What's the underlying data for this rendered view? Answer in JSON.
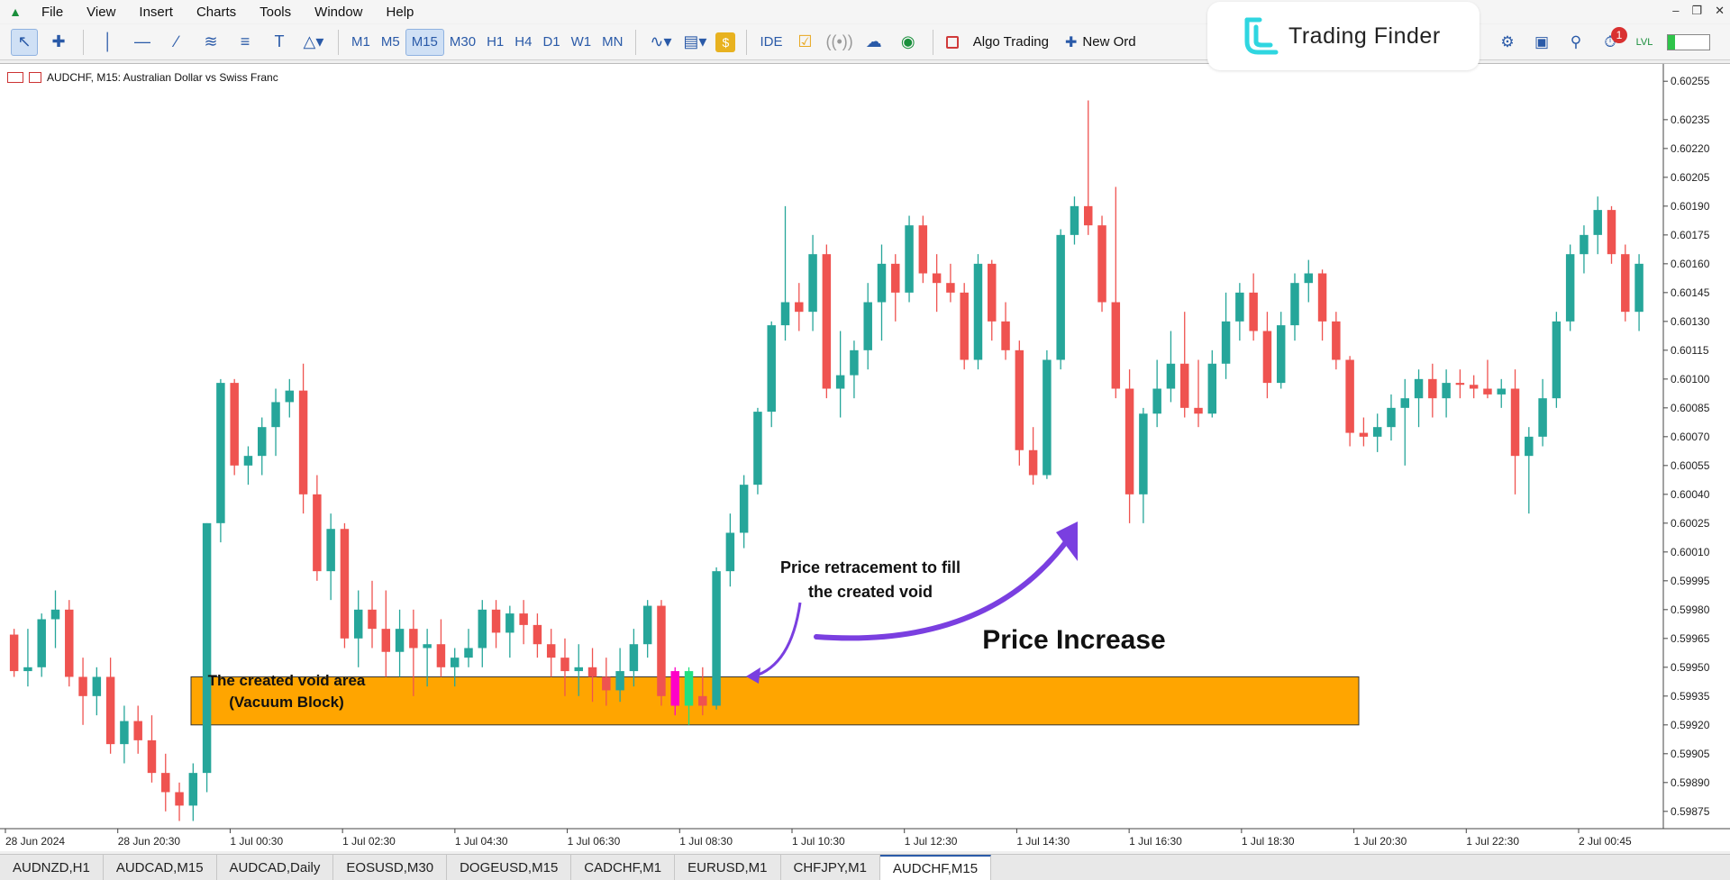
{
  "menu": [
    "File",
    "View",
    "Insert",
    "Charts",
    "Tools",
    "Window",
    "Help"
  ],
  "timeframes": [
    "M1",
    "M5",
    "M15",
    "M30",
    "H1",
    "H4",
    "D1",
    "W1",
    "MN"
  ],
  "active_timeframe": "M15",
  "toolbar_text": {
    "ide": "IDE",
    "algo": "Algo Trading",
    "new_order": "New Ord"
  },
  "logo": {
    "text": "Trading Finder"
  },
  "notifications_count": "1",
  "chart_header": "AUDCHF, M15:  Australian Dollar vs Swiss Franc",
  "tabs": [
    "AUDNZD,H1",
    "AUDCAD,M15",
    "AUDCAD,Daily",
    "EOSUSD,M30",
    "DOGEUSD,M15",
    "CADCHF,M1",
    "EURUSD,M1",
    "CHFJPY,M1",
    "AUDCHF,M15"
  ],
  "active_tab": "AUDCHF,M15",
  "colors": {
    "bull": "#26a69a",
    "bear": "#ef5350",
    "zone": "#ffa500",
    "arrow": "#7a3fe0"
  },
  "chart_data": {
    "type": "candlestick",
    "symbol": "AUDCHF",
    "timeframe": "M15",
    "y_ticks": [
      "0.60255",
      "0.60235",
      "0.60220",
      "0.60205",
      "0.60190",
      "0.60175",
      "0.60160",
      "0.60145",
      "0.60130",
      "0.60115",
      "0.60100",
      "0.60085",
      "0.60070",
      "0.60055",
      "0.60040",
      "0.60025",
      "0.60010",
      "0.59995",
      "0.59980",
      "0.59965",
      "0.59950",
      "0.59935",
      "0.59920",
      "0.59905",
      "0.59890",
      "0.59875"
    ],
    "ylim": [
      0.59866,
      0.60264
    ],
    "x_ticks": [
      "28 Jun 2024",
      "28 Jun 20:30",
      "1 Jul 00:30",
      "1 Jul 02:30",
      "1 Jul 04:30",
      "1 Jul 06:30",
      "1 Jul 08:30",
      "1 Jul 10:30",
      "1 Jul 12:30",
      "1 Jul 14:30",
      "1 Jul 16:30",
      "1 Jul 18:30",
      "1 Jul 20:30",
      "1 Jul 22:30",
      "2 Jul 00:45"
    ],
    "candles": [
      [
        0.59967,
        0.5997,
        0.59945,
        0.59948
      ],
      [
        0.59948,
        0.5997,
        0.5994,
        0.5995
      ],
      [
        0.5995,
        0.59978,
        0.59945,
        0.59975
      ],
      [
        0.59975,
        0.5999,
        0.5996,
        0.5998
      ],
      [
        0.5998,
        0.59985,
        0.5994,
        0.59945
      ],
      [
        0.59945,
        0.59955,
        0.5992,
        0.59935
      ],
      [
        0.59935,
        0.5995,
        0.59925,
        0.59945
      ],
      [
        0.59945,
        0.59955,
        0.59905,
        0.5991
      ],
      [
        0.5991,
        0.5993,
        0.599,
        0.59922
      ],
      [
        0.59922,
        0.5993,
        0.59905,
        0.59912
      ],
      [
        0.59912,
        0.59925,
        0.5989,
        0.59895
      ],
      [
        0.59895,
        0.59905,
        0.59875,
        0.59885
      ],
      [
        0.59885,
        0.5989,
        0.5987,
        0.59878
      ],
      [
        0.59878,
        0.599,
        0.5987,
        0.59895
      ],
      [
        0.59895,
        0.60025,
        0.59885,
        0.60025
      ],
      [
        0.60025,
        0.601,
        0.60015,
        0.60098
      ],
      [
        0.60098,
        0.601,
        0.6005,
        0.60055
      ],
      [
        0.60055,
        0.60065,
        0.60045,
        0.6006
      ],
      [
        0.6006,
        0.6008,
        0.6005,
        0.60075
      ],
      [
        0.60075,
        0.60095,
        0.6006,
        0.60088
      ],
      [
        0.60088,
        0.601,
        0.6008,
        0.60094
      ],
      [
        0.60094,
        0.60108,
        0.6003,
        0.6004
      ],
      [
        0.6004,
        0.6005,
        0.59995,
        0.6
      ],
      [
        0.6,
        0.6003,
        0.59985,
        0.60022
      ],
      [
        0.60022,
        0.60025,
        0.5996,
        0.59965
      ],
      [
        0.59965,
        0.5999,
        0.5995,
        0.5998
      ],
      [
        0.5998,
        0.59995,
        0.5996,
        0.5997
      ],
      [
        0.5997,
        0.5999,
        0.59945,
        0.59958
      ],
      [
        0.59958,
        0.5998,
        0.59945,
        0.5997
      ],
      [
        0.5997,
        0.5998,
        0.59935,
        0.5996
      ],
      [
        0.5996,
        0.5997,
        0.5994,
        0.59962
      ],
      [
        0.59962,
        0.59975,
        0.59945,
        0.5995
      ],
      [
        0.5995,
        0.5996,
        0.5994,
        0.59955
      ],
      [
        0.59955,
        0.5997,
        0.5995,
        0.5996
      ],
      [
        0.5996,
        0.59985,
        0.5995,
        0.5998
      ],
      [
        0.5998,
        0.59985,
        0.5996,
        0.59968
      ],
      [
        0.59968,
        0.59982,
        0.59955,
        0.59978
      ],
      [
        0.59978,
        0.59985,
        0.59962,
        0.59972
      ],
      [
        0.59972,
        0.59978,
        0.59955,
        0.59962
      ],
      [
        0.59962,
        0.5997,
        0.59945,
        0.59955
      ],
      [
        0.59955,
        0.59965,
        0.59935,
        0.59948
      ],
      [
        0.59948,
        0.59962,
        0.59935,
        0.5995
      ],
      [
        0.5995,
        0.5996,
        0.59932,
        0.59945
      ],
      [
        0.59945,
        0.59955,
        0.5993,
        0.59938
      ],
      [
        0.59938,
        0.5996,
        0.59932,
        0.59948
      ],
      [
        0.59948,
        0.5997,
        0.5994,
        0.59962
      ],
      [
        0.59962,
        0.59985,
        0.59955,
        0.59982
      ],
      [
        0.59982,
        0.59985,
        0.5993,
        0.59935
      ],
      [
        0.59935,
        0.5995,
        0.59925,
        0.5993
      ],
      [
        0.5993,
        0.60002,
        0.59928,
        0.6
      ],
      [
        0.6,
        0.6003,
        0.59992,
        0.6002
      ],
      [
        0.6002,
        0.6005,
        0.60012,
        0.60045
      ],
      [
        0.60045,
        0.60085,
        0.6004,
        0.60083
      ],
      [
        0.60083,
        0.6013,
        0.60075,
        0.60128
      ],
      [
        0.60128,
        0.6019,
        0.6012,
        0.6014
      ],
      [
        0.6014,
        0.6015,
        0.60125,
        0.60135
      ],
      [
        0.60135,
        0.60175,
        0.60125,
        0.60165
      ],
      [
        0.60165,
        0.6017,
        0.6009,
        0.60095
      ],
      [
        0.60095,
        0.60125,
        0.6008,
        0.60102
      ],
      [
        0.60102,
        0.6012,
        0.6009,
        0.60115
      ],
      [
        0.60115,
        0.6015,
        0.60105,
        0.6014
      ],
      [
        0.6014,
        0.6017,
        0.6012,
        0.6016
      ],
      [
        0.6016,
        0.60165,
        0.6013,
        0.60145
      ],
      [
        0.60145,
        0.60185,
        0.6014,
        0.6018
      ],
      [
        0.6018,
        0.60185,
        0.6015,
        0.60155
      ],
      [
        0.60155,
        0.60165,
        0.60135,
        0.6015
      ],
      [
        0.6015,
        0.6016,
        0.6014,
        0.60145
      ],
      [
        0.60145,
        0.6015,
        0.60105,
        0.6011
      ],
      [
        0.6011,
        0.60165,
        0.60105,
        0.6016
      ],
      [
        0.6016,
        0.60162,
        0.6012,
        0.6013
      ],
      [
        0.6013,
        0.6014,
        0.6011,
        0.60115
      ],
      [
        0.60115,
        0.6012,
        0.60055,
        0.60063
      ],
      [
        0.60063,
        0.60075,
        0.60045,
        0.6005
      ],
      [
        0.6005,
        0.60115,
        0.60048,
        0.6011
      ],
      [
        0.6011,
        0.60178,
        0.60105,
        0.60175
      ],
      [
        0.60175,
        0.60195,
        0.6017,
        0.6019
      ],
      [
        0.6019,
        0.60245,
        0.60175,
        0.6018
      ],
      [
        0.6018,
        0.60185,
        0.60135,
        0.6014
      ],
      [
        0.6014,
        0.602,
        0.6009,
        0.60095
      ],
      [
        0.60095,
        0.60105,
        0.60025,
        0.6004
      ],
      [
        0.6004,
        0.60085,
        0.60025,
        0.60082
      ],
      [
        0.60082,
        0.6011,
        0.60075,
        0.60095
      ],
      [
        0.60095,
        0.60125,
        0.60088,
        0.60108
      ],
      [
        0.60108,
        0.60135,
        0.6008,
        0.60085
      ],
      [
        0.60085,
        0.6011,
        0.60075,
        0.60082
      ],
      [
        0.60082,
        0.60115,
        0.6008,
        0.60108
      ],
      [
        0.60108,
        0.60145,
        0.601,
        0.6013
      ],
      [
        0.6013,
        0.6015,
        0.6012,
        0.60145
      ],
      [
        0.60145,
        0.60155,
        0.6012,
        0.60125
      ],
      [
        0.60125,
        0.60135,
        0.6009,
        0.60098
      ],
      [
        0.60098,
        0.60135,
        0.60095,
        0.60128
      ],
      [
        0.60128,
        0.60155,
        0.6012,
        0.6015
      ],
      [
        0.6015,
        0.60162,
        0.6014,
        0.60155
      ],
      [
        0.60155,
        0.60157,
        0.6012,
        0.6013
      ],
      [
        0.6013,
        0.60135,
        0.60105,
        0.6011
      ],
      [
        0.6011,
        0.60112,
        0.60065,
        0.60072
      ],
      [
        0.60072,
        0.6008,
        0.60065,
        0.6007
      ],
      [
        0.6007,
        0.60082,
        0.60062,
        0.60075
      ],
      [
        0.60075,
        0.60092,
        0.60068,
        0.60085
      ],
      [
        0.60085,
        0.601,
        0.60055,
        0.6009
      ],
      [
        0.6009,
        0.60105,
        0.60075,
        0.601
      ],
      [
        0.601,
        0.60108,
        0.6008,
        0.6009
      ],
      [
        0.6009,
        0.60105,
        0.6008,
        0.60098
      ],
      [
        0.60098,
        0.60105,
        0.6009,
        0.60097
      ],
      [
        0.60097,
        0.60102,
        0.6009,
        0.60095
      ],
      [
        0.60095,
        0.6011,
        0.6009,
        0.60092
      ],
      [
        0.60092,
        0.601,
        0.60085,
        0.60095
      ],
      [
        0.60095,
        0.60105,
        0.6004,
        0.6006
      ],
      [
        0.6006,
        0.60075,
        0.6003,
        0.6007
      ],
      [
        0.6007,
        0.601,
        0.60065,
        0.6009
      ],
      [
        0.6009,
        0.60135,
        0.60085,
        0.6013
      ],
      [
        0.6013,
        0.6017,
        0.60125,
        0.60165
      ],
      [
        0.60165,
        0.6018,
        0.60155,
        0.60175
      ],
      [
        0.60175,
        0.60195,
        0.60165,
        0.60188
      ],
      [
        0.60188,
        0.6019,
        0.6016,
        0.60165
      ],
      [
        0.60165,
        0.6017,
        0.6013,
        0.60135
      ],
      [
        0.60135,
        0.60165,
        0.60125,
        0.6016
      ]
    ],
    "vacuum_candles": [
      [
        0.59948,
        0.5995,
        0.59925,
        0.5993
      ],
      [
        0.5993,
        0.5995,
        0.5992,
        0.59948
      ]
    ],
    "zone": {
      "from_price": 0.59945,
      "to_price": 0.5992
    }
  },
  "annotations": {
    "zone_label_1": "The created void area",
    "zone_label_2": "(Vacuum Block)",
    "retrace_1": "Price retracement to fill",
    "retrace_2": "the created void",
    "increase": "Price Increase"
  }
}
